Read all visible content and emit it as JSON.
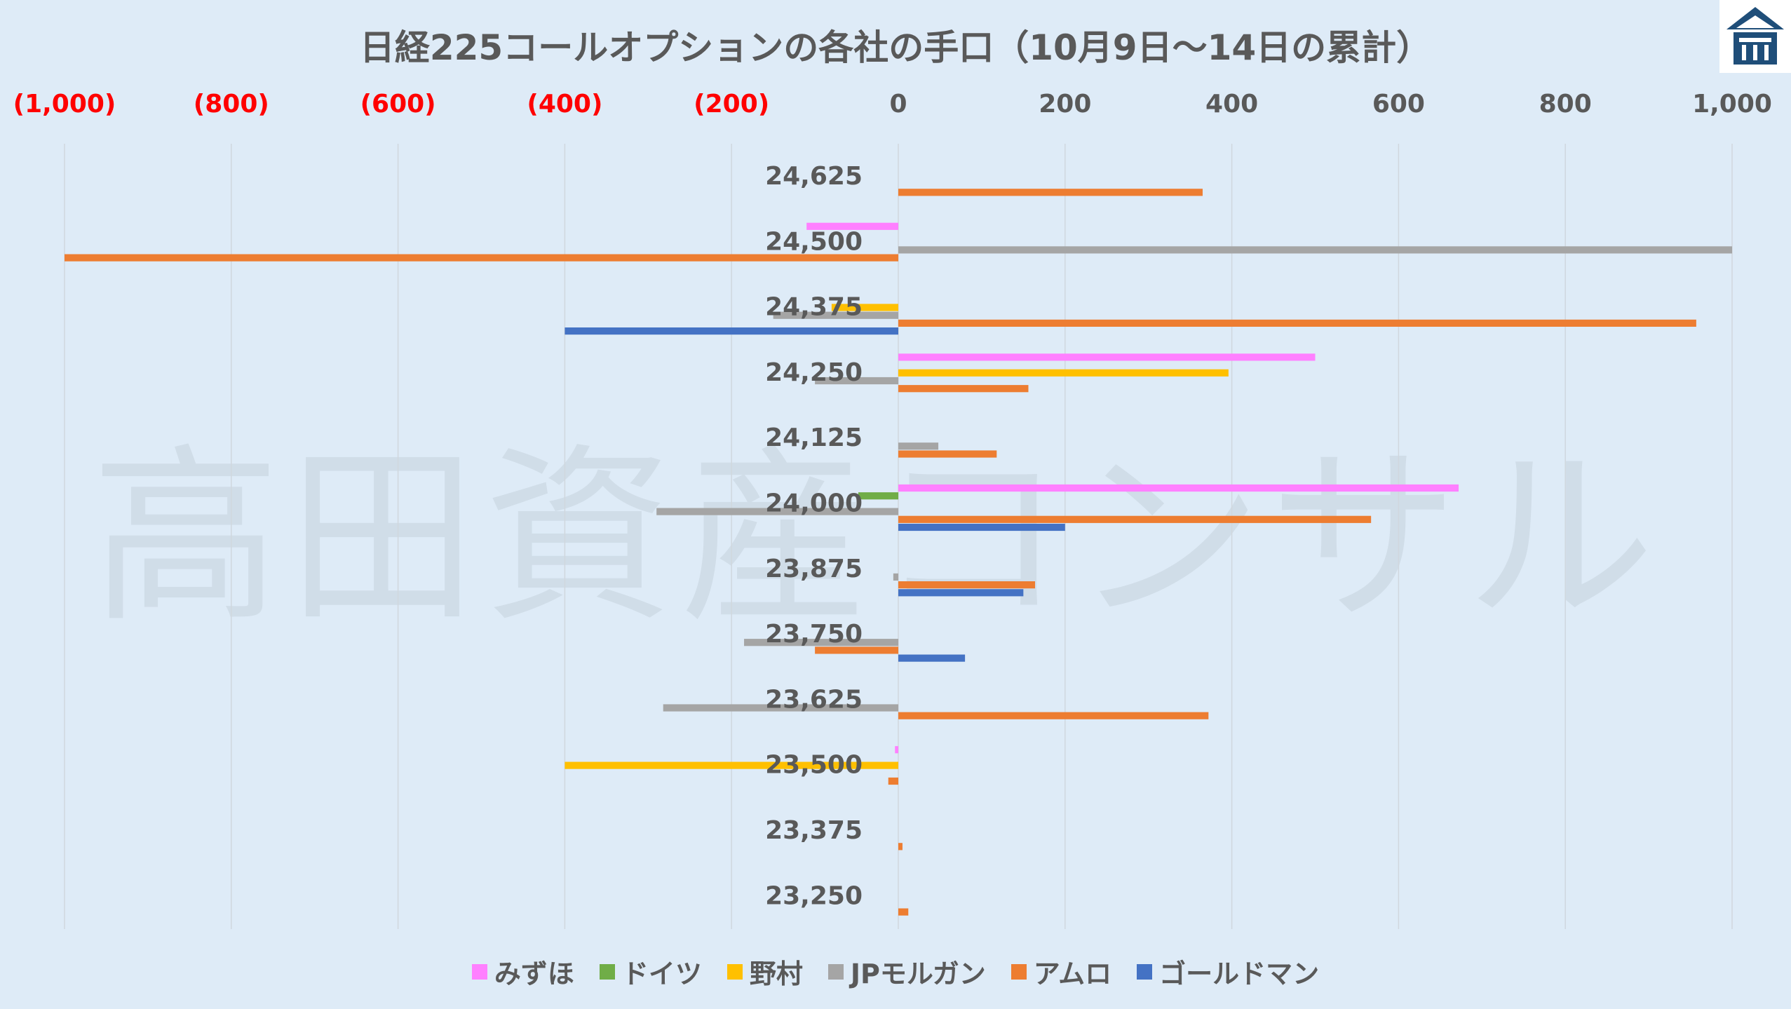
{
  "chart_data": {
    "type": "bar",
    "orientation": "horizontal",
    "title": "日経225コールオプションの各社の手口（10月9日～14日の累計）",
    "watermark": "高田資産コンサル",
    "xlim": [
      -1000,
      1000
    ],
    "x_ticks": [
      -1000,
      -800,
      -600,
      -400,
      -200,
      0,
      200,
      400,
      600,
      800,
      1000
    ],
    "x_tick_labels": [
      "(1,000)",
      "(800)",
      "(600)",
      "(400)",
      "(200)",
      "0",
      "200",
      "400",
      "600",
      "800",
      "1,000"
    ],
    "negative_tick_color": "#FF0000",
    "grid": "vertical",
    "legend_position": "bottom",
    "categories": [
      "24,625",
      "24,500",
      "24,375",
      "24,250",
      "24,125",
      "24,000",
      "23,875",
      "23,750",
      "23,625",
      "23,500",
      "23,375",
      "23,250"
    ],
    "series": [
      {
        "name": "みずほ",
        "color": "#FF80FF",
        "values": [
          0,
          -110,
          0,
          500,
          0,
          672,
          0,
          0,
          0,
          -4,
          0,
          0
        ]
      },
      {
        "name": "ドイツ",
        "color": "#70AD47",
        "values": [
          0,
          0,
          0,
          0,
          0,
          -48,
          0,
          0,
          0,
          0,
          0,
          0
        ]
      },
      {
        "name": "野村",
        "color": "#FFC000",
        "values": [
          0,
          0,
          -80,
          396,
          0,
          0,
          0,
          0,
          0,
          -400,
          0,
          0
        ]
      },
      {
        "name": "JPモルガン",
        "color": "#A5A5A5",
        "values": [
          0,
          1000,
          -150,
          -100,
          48,
          -290,
          -6,
          -185,
          -282,
          0,
          0,
          0
        ]
      },
      {
        "name": "アムロ",
        "color": "#ED7D31",
        "values": [
          365,
          -1000,
          957,
          156,
          118,
          567,
          164,
          -100,
          372,
          -12,
          5,
          12
        ]
      },
      {
        "name": "ゴールドマン",
        "color": "#4472C4",
        "values": [
          0,
          0,
          -400,
          0,
          0,
          200,
          150,
          80,
          0,
          0,
          0,
          0
        ]
      }
    ]
  }
}
